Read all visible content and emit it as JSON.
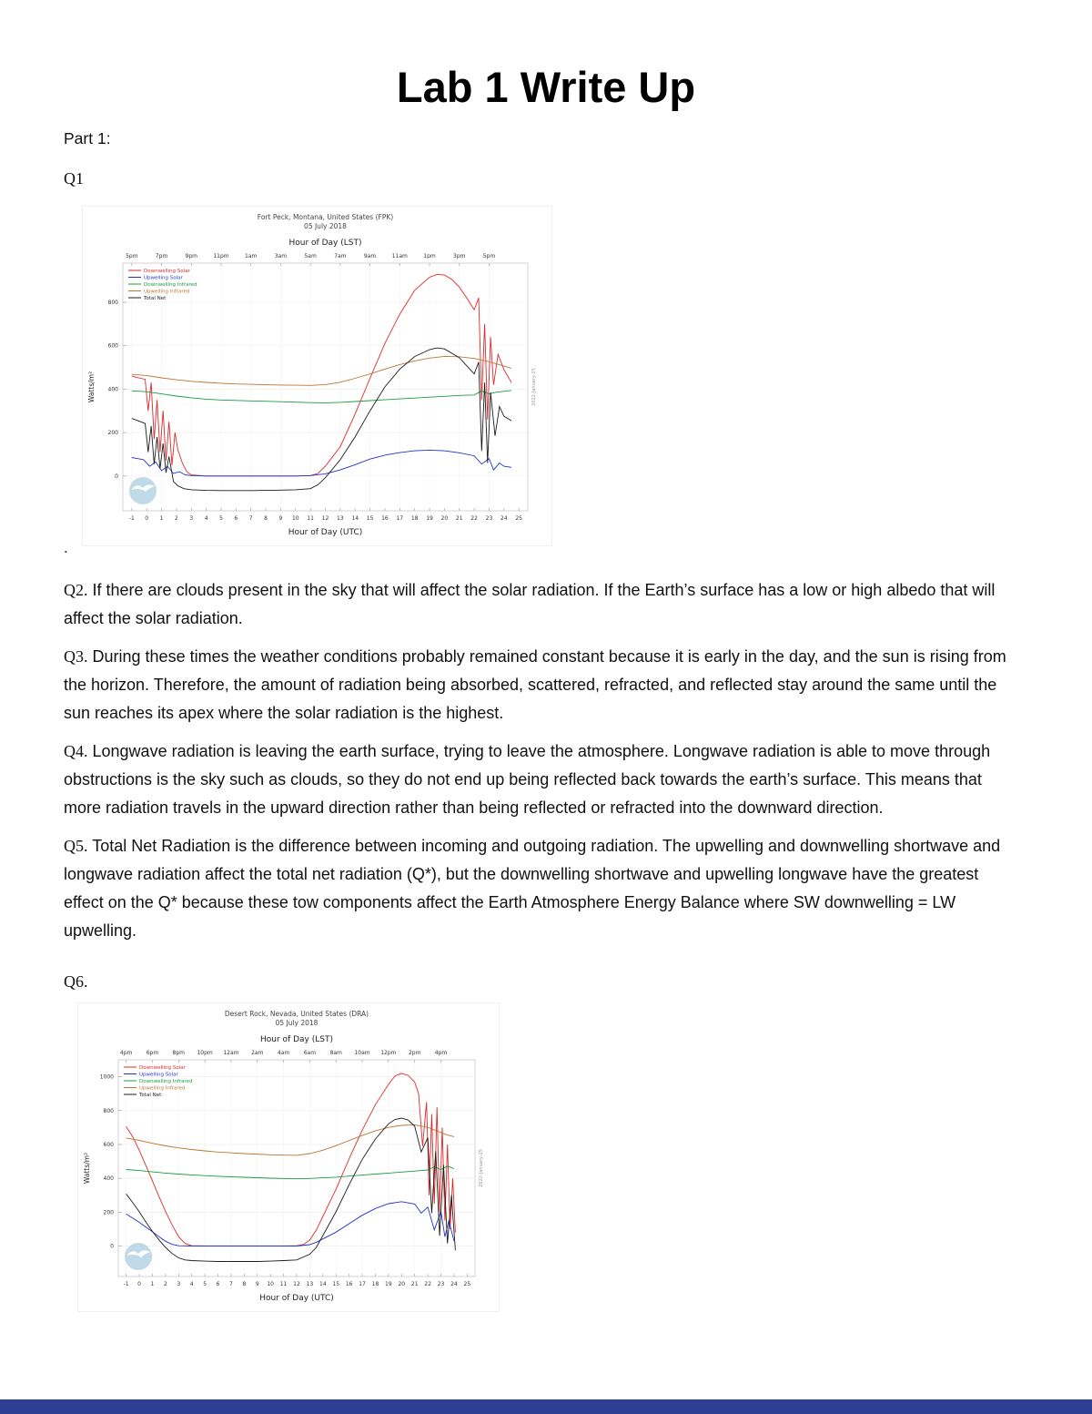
{
  "page": {
    "title": "Lab 1 Write Up",
    "part_label": "Part 1:",
    "q1_label": "Q1",
    "after_chart1": ".",
    "q6_label": "Q6.",
    "footer_bar_color": "#2c3f94",
    "paragraphs": [
      {
        "prefix": "Q2.",
        "text": "If there are clouds present in the sky that will affect  the solar radiation. If the Earth’s surface has a low or high albedo that will affect the solar radiation."
      },
      {
        "prefix": "Q3.",
        "text": "During these times the weather conditions probably remained constant because it is early in the day, and the sun is rising from the horizon. Therefore, the amount of radiation being absorbed, scattered, refracted, and reflected stay around the same until the sun reaches its apex where the solar radiation is the highest."
      },
      {
        "prefix": "Q4.",
        "text": "Longwave radiation is leaving the earth surface, trying to leave the atmosphere. Longwave radiation is able to move through obstructions is the sky such as clouds, so they do not end up being reflected back towards the earth’s surface. This means that more radiation travels in the upward direction rather than being reflected or refracted into the downward direction."
      },
      {
        "prefix": "Q5.",
        "text": "Total Net Radiation is the difference between incoming and outgoing radiation. The upwelling and downwelling shortwave and longwave radiation affect the total net radiation (Q*), but the downwelling shortwave and upwelling longwave have the greatest effect on the Q* because these tow components affect the Earth Atmosphere Energy Balance where SW downwelling = LW upwelling."
      }
    ]
  },
  "chart_data": [
    {
      "type": "line",
      "title": "Fort Peck, Montana, United States (FPK)",
      "subtitle": "05 July 2018",
      "xlabel_top": "Hour of Day (LST)",
      "xlabel_bottom": "Hour of Day (UTC)",
      "ylabel": "Watts/m²",
      "side_note": "2022-January-25",
      "watermark": "noaa-logo",
      "legend_position": "top-left",
      "grid": true,
      "xlim": [
        -1.6,
        25.6
      ],
      "ylim": [
        -160,
        980
      ],
      "yticks": [
        0,
        200,
        400,
        600,
        800
      ],
      "xticks_bottom": [
        -1,
        0,
        1,
        2,
        3,
        4,
        5,
        6,
        7,
        8,
        9,
        10,
        11,
        12,
        13,
        14,
        15,
        16,
        17,
        18,
        19,
        20,
        21,
        22,
        23,
        24,
        25
      ],
      "xticks_top": {
        "positions": [
          -1,
          1,
          3,
          5,
          7,
          9,
          11,
          13,
          15,
          17,
          19,
          21,
          23
        ],
        "labels": [
          "5pm",
          "7pm",
          "9pm",
          "11pm",
          "1am",
          "3am",
          "5am",
          "7am",
          "9am",
          "11am",
          "1pm",
          "3pm",
          "5pm"
        ]
      },
      "series": [
        {
          "name": "Downwelling Solar",
          "color": "#e02a2a",
          "x": [
            -1,
            -0.7,
            -0.4,
            -0.1,
            0.1,
            0.3,
            0.5,
            0.7,
            0.9,
            1.1,
            1.3,
            1.5,
            1.7,
            1.9,
            2.1,
            2.4,
            2.7,
            3,
            4,
            5,
            6,
            7,
            8,
            9,
            10,
            11,
            11.5,
            12,
            13,
            14,
            15,
            16,
            17,
            18,
            19,
            19.5,
            20,
            20.5,
            21,
            21.5,
            22,
            22.3,
            22.5,
            22.7,
            22.9,
            23.1,
            23.3,
            23.6,
            24,
            24.5
          ],
          "y": [
            460,
            455,
            450,
            445,
            300,
            430,
            170,
            350,
            110,
            300,
            70,
            250,
            50,
            200,
            120,
            60,
            20,
            5,
            0,
            0,
            0,
            0,
            0,
            0,
            0,
            2,
            12,
            45,
            135,
            285,
            450,
            610,
            745,
            855,
            915,
            928,
            925,
            905,
            870,
            820,
            765,
            820,
            350,
            700,
            260,
            640,
            420,
            560,
            490,
            430
          ]
        },
        {
          "name": "Upwelling Solar",
          "color": "#2233cc",
          "x": [
            -1,
            -0.6,
            -0.2,
            0.2,
            0.6,
            1,
            1.4,
            1.8,
            2.2,
            2.6,
            3,
            4,
            6,
            8,
            10,
            11,
            12,
            13,
            14,
            15,
            16,
            17,
            18,
            19,
            20,
            21,
            22,
            22.5,
            23,
            23.3,
            23.7,
            24,
            24.5
          ],
          "y": [
            85,
            80,
            75,
            45,
            65,
            25,
            45,
            12,
            20,
            5,
            2,
            0,
            0,
            0,
            0,
            2,
            10,
            28,
            52,
            78,
            96,
            108,
            116,
            119,
            116,
            107,
            93,
            55,
            80,
            28,
            60,
            45,
            40
          ]
        },
        {
          "name": "Downwelling Infrared",
          "color": "#1a9e3f",
          "x": [
            -1,
            0,
            1,
            2,
            3,
            4,
            5,
            6,
            7,
            8,
            9,
            10,
            11,
            12,
            13,
            14,
            15,
            16,
            17,
            18,
            19,
            20,
            21,
            22,
            22.5,
            23,
            23.5,
            24,
            24.5
          ],
          "y": [
            392,
            388,
            378,
            368,
            360,
            354,
            350,
            348,
            346,
            344,
            342,
            340,
            338,
            337,
            339,
            343,
            347,
            351,
            355,
            359,
            363,
            367,
            371,
            373,
            392,
            378,
            386,
            390,
            394
          ]
        },
        {
          "name": "Upwelling Infrared",
          "color": "#bd7434",
          "x": [
            -1,
            0,
            1,
            2,
            3,
            4,
            5,
            6,
            7,
            8,
            9,
            10,
            11,
            12,
            13,
            14,
            15,
            16,
            17,
            18,
            19,
            20,
            21,
            22,
            23,
            24,
            24.5
          ],
          "y": [
            468,
            463,
            452,
            443,
            436,
            431,
            427,
            424,
            422,
            420,
            419,
            418,
            417,
            421,
            432,
            450,
            470,
            492,
            513,
            530,
            543,
            551,
            549,
            541,
            526,
            506,
            496
          ]
        },
        {
          "name": "Total Net",
          "color": "#1c1c1c",
          "x": [
            -1,
            -0.7,
            -0.4,
            -0.1,
            0.1,
            0.3,
            0.5,
            0.7,
            0.9,
            1.1,
            1.3,
            1.5,
            1.8,
            2.1,
            2.5,
            3,
            4,
            5,
            6,
            7,
            8,
            9,
            10,
            11,
            11.5,
            12,
            13,
            14,
            15,
            16,
            17,
            18,
            19,
            19.5,
            20,
            21,
            22,
            22.3,
            22.5,
            22.7,
            22.9,
            23.1,
            23.4,
            23.7,
            24,
            24.5
          ],
          "y": [
            265,
            258,
            250,
            242,
            110,
            230,
            55,
            180,
            35,
            150,
            15,
            90,
            -25,
            -45,
            -58,
            -63,
            -66,
            -67,
            -67,
            -67,
            -66,
            -65,
            -63,
            -58,
            -40,
            -8,
            75,
            180,
            300,
            410,
            492,
            550,
            582,
            590,
            585,
            545,
            470,
            525,
            115,
            430,
            60,
            385,
            185,
            320,
            275,
            255
          ]
        }
      ]
    },
    {
      "type": "line",
      "title": "Desert Rock, Nevada, United States (DRA)",
      "subtitle": "05 July 2018",
      "xlabel_top": "Hour of Day (LST)",
      "xlabel_bottom": "Hour of Day (UTC)",
      "ylabel": "Watts/m²",
      "side_note": "2022-January-25",
      "watermark": "noaa-logo",
      "legend_position": "top-left",
      "grid": true,
      "xlim": [
        -1.6,
        25.6
      ],
      "ylim": [
        -180,
        1100
      ],
      "yticks": [
        0,
        200,
        400,
        600,
        800,
        1000
      ],
      "xticks_bottom": [
        -1,
        0,
        1,
        2,
        3,
        4,
        5,
        6,
        7,
        8,
        9,
        10,
        11,
        12,
        13,
        14,
        15,
        16,
        17,
        18,
        19,
        20,
        21,
        22,
        23,
        24,
        25
      ],
      "xticks_top": {
        "positions": [
          -1,
          1,
          3,
          5,
          7,
          9,
          11,
          13,
          15,
          17,
          19,
          21,
          23
        ],
        "labels": [
          "4pm",
          "6pm",
          "8pm",
          "10pm",
          "12am",
          "2am",
          "4am",
          "6am",
          "8am",
          "10am",
          "12pm",
          "2pm",
          "4pm"
        ]
      },
      "series": [
        {
          "name": "Downwelling Solar",
          "color": "#e02a2a",
          "x": [
            -1,
            -0.5,
            0,
            0.5,
            1,
            1.5,
            2,
            2.5,
            3,
            3.5,
            4,
            5,
            6,
            7,
            8,
            9,
            10,
            11,
            12,
            12.5,
            13,
            13.5,
            14,
            15,
            16,
            17,
            18,
            19,
            19.5,
            20,
            20.5,
            21,
            21.3,
            21.6,
            21.9,
            22.1,
            22.3,
            22.5,
            22.7,
            22.9,
            23.1,
            23.3,
            23.5,
            23.7,
            23.9,
            24.1
          ],
          "y": [
            705,
            645,
            565,
            475,
            385,
            292,
            205,
            125,
            55,
            15,
            2,
            0,
            0,
            0,
            0,
            0,
            0,
            0,
            2,
            8,
            35,
            95,
            175,
            335,
            515,
            685,
            835,
            955,
            1005,
            1020,
            1008,
            968,
            900,
            590,
            850,
            300,
            780,
            250,
            820,
            200,
            700,
            150,
            600,
            100,
            400,
            80
          ]
        },
        {
          "name": "Upwelling Solar",
          "color": "#2233cc",
          "x": [
            -1,
            -0.5,
            0,
            0.5,
            1,
            1.5,
            2,
            2.5,
            3,
            4,
            6,
            8,
            10,
            12,
            13,
            13.5,
            14,
            15,
            16,
            17,
            18,
            19,
            20,
            21,
            21.5,
            22,
            22.5,
            23,
            23.3,
            23.6,
            24
          ],
          "y": [
            190,
            165,
            140,
            112,
            85,
            55,
            28,
            10,
            2,
            0,
            0,
            0,
            0,
            0,
            8,
            22,
            42,
            82,
            132,
            182,
            222,
            250,
            262,
            248,
            195,
            230,
            95,
            205,
            55,
            150,
            30
          ]
        },
        {
          "name": "Downwelling Infrared",
          "color": "#1a9e3f",
          "x": [
            -1,
            0,
            1,
            2,
            3,
            4,
            5,
            6,
            8,
            10,
            12,
            13,
            14,
            15,
            16,
            17,
            18,
            19,
            20,
            21,
            22,
            22.5,
            23,
            23.5,
            24
          ],
          "y": [
            452,
            446,
            438,
            431,
            425,
            420,
            416,
            412,
            406,
            401,
            397,
            399,
            403,
            407,
            413,
            419,
            425,
            431,
            437,
            443,
            449,
            468,
            452,
            472,
            458
          ]
        },
        {
          "name": "Upwelling Infrared",
          "color": "#bd7434",
          "x": [
            -1,
            0,
            1,
            2,
            3,
            4,
            5,
            6,
            8,
            10,
            12,
            13,
            14,
            15,
            16,
            17,
            18,
            19,
            20,
            21,
            22,
            23,
            23.5,
            24
          ],
          "y": [
            638,
            624,
            607,
            592,
            580,
            570,
            562,
            555,
            546,
            539,
            536,
            546,
            566,
            593,
            623,
            653,
            681,
            701,
            713,
            716,
            701,
            671,
            656,
            646
          ]
        },
        {
          "name": "Total Net",
          "color": "#1c1c1c",
          "x": [
            -1,
            -0.5,
            0,
            0.5,
            1,
            1.5,
            2,
            2.5,
            3,
            3.5,
            4,
            5,
            6,
            7,
            8,
            9,
            10,
            11,
            12,
            13,
            13.5,
            14,
            15,
            16,
            17,
            18,
            19,
            19.5,
            20,
            20.5,
            21,
            21.5,
            22,
            22.3,
            22.6,
            22.9,
            23.2,
            23.5,
            23.8,
            24.1
          ],
          "y": [
            308,
            256,
            202,
            142,
            86,
            36,
            -8,
            -44,
            -70,
            -82,
            -86,
            -89,
            -91,
            -91,
            -91,
            -91,
            -89,
            -86,
            -82,
            -48,
            -8,
            62,
            202,
            362,
            512,
            632,
            722,
            748,
            756,
            744,
            708,
            556,
            640,
            195,
            560,
            60,
            480,
            15,
            300,
            -25
          ]
        }
      ]
    }
  ]
}
